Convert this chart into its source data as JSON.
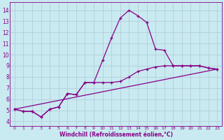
{
  "background_color": "#c8eaf0",
  "line_color": "#880088",
  "grid_color": "#b0c8d8",
  "xlabel": "Windchill (Refroidissement éolien,°C)",
  "xlabel_color": "#880088",
  "xticks": [
    0,
    1,
    2,
    3,
    4,
    5,
    6,
    7,
    8,
    9,
    10,
    11,
    12,
    13,
    14,
    15,
    16,
    17,
    18,
    19,
    20,
    21,
    22,
    23
  ],
  "yticks": [
    4,
    5,
    6,
    7,
    8,
    9,
    10,
    11,
    12,
    13,
    14
  ],
  "ylim": [
    3.6,
    14.7
  ],
  "xlim": [
    -0.5,
    23.5
  ],
  "series1_x": [
    0,
    1,
    2,
    3,
    4,
    5,
    6,
    7,
    8,
    9,
    10,
    11,
    12,
    13,
    14,
    15,
    16,
    17,
    18,
    19,
    20,
    21,
    22,
    23
  ],
  "series1_y": [
    5.1,
    4.9,
    4.9,
    4.4,
    5.1,
    5.3,
    6.5,
    6.4,
    7.5,
    7.5,
    9.5,
    11.5,
    13.3,
    14.0,
    13.5,
    12.9,
    10.5,
    10.4,
    9.0,
    9.0,
    9.0,
    9.0,
    8.8,
    8.7
  ],
  "series2_x": [
    0,
    1,
    2,
    3,
    4,
    5,
    6,
    7,
    8,
    9,
    10,
    11,
    12,
    13,
    14,
    15,
    16,
    17,
    18,
    19,
    20,
    21,
    22,
    23
  ],
  "series2_y": [
    5.1,
    4.9,
    4.9,
    4.4,
    5.1,
    5.3,
    6.5,
    6.4,
    7.5,
    7.5,
    7.5,
    7.5,
    7.6,
    8.0,
    8.5,
    8.7,
    8.9,
    9.0,
    9.0,
    9.0,
    9.0,
    9.0,
    8.8,
    8.7
  ],
  "series3_x": [
    0,
    23
  ],
  "series3_y": [
    5.1,
    8.7
  ]
}
